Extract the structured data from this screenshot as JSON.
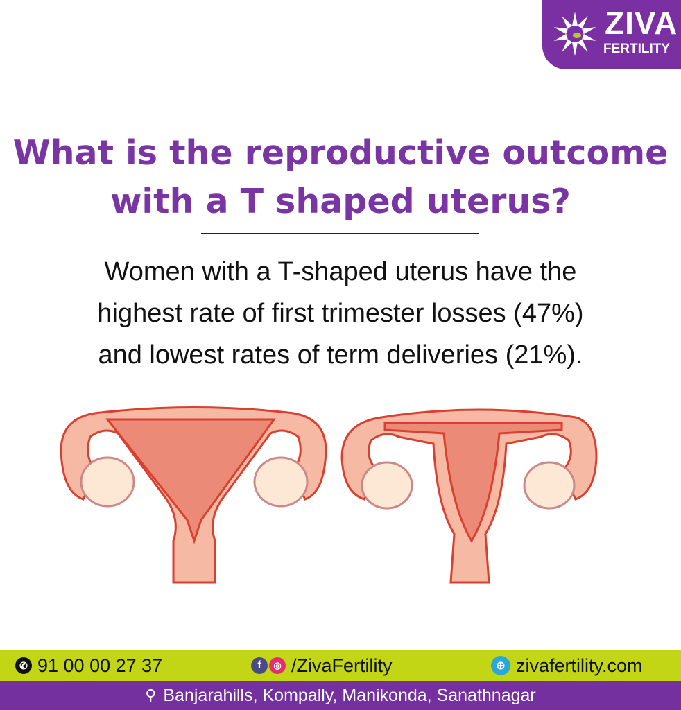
{
  "brand": {
    "name": "ZIVA",
    "sub": "FERTILITY",
    "color": "#7a2fa3"
  },
  "title": {
    "line1": "What is the reproductive outcome",
    "line2": "with a T shaped uterus?",
    "color": "#7a35a5"
  },
  "body": {
    "line1": "Women with a T-shaped uterus have  the",
    "line2": "highest rate of first trimester losses (47%)",
    "line3": "and lowest rates of term deliveries (21%)."
  },
  "illustrations": [
    "t-shaped-uterus",
    "normal-uterus"
  ],
  "footer": {
    "phone": "91 00 00 27 37",
    "social": "/ZivaFertility",
    "website": "zivafertility.com",
    "locations": "Banjarahills, Kompally,  Manikonda, Sanathnagar",
    "green": "#c3d615",
    "purple": "#7530a0"
  }
}
